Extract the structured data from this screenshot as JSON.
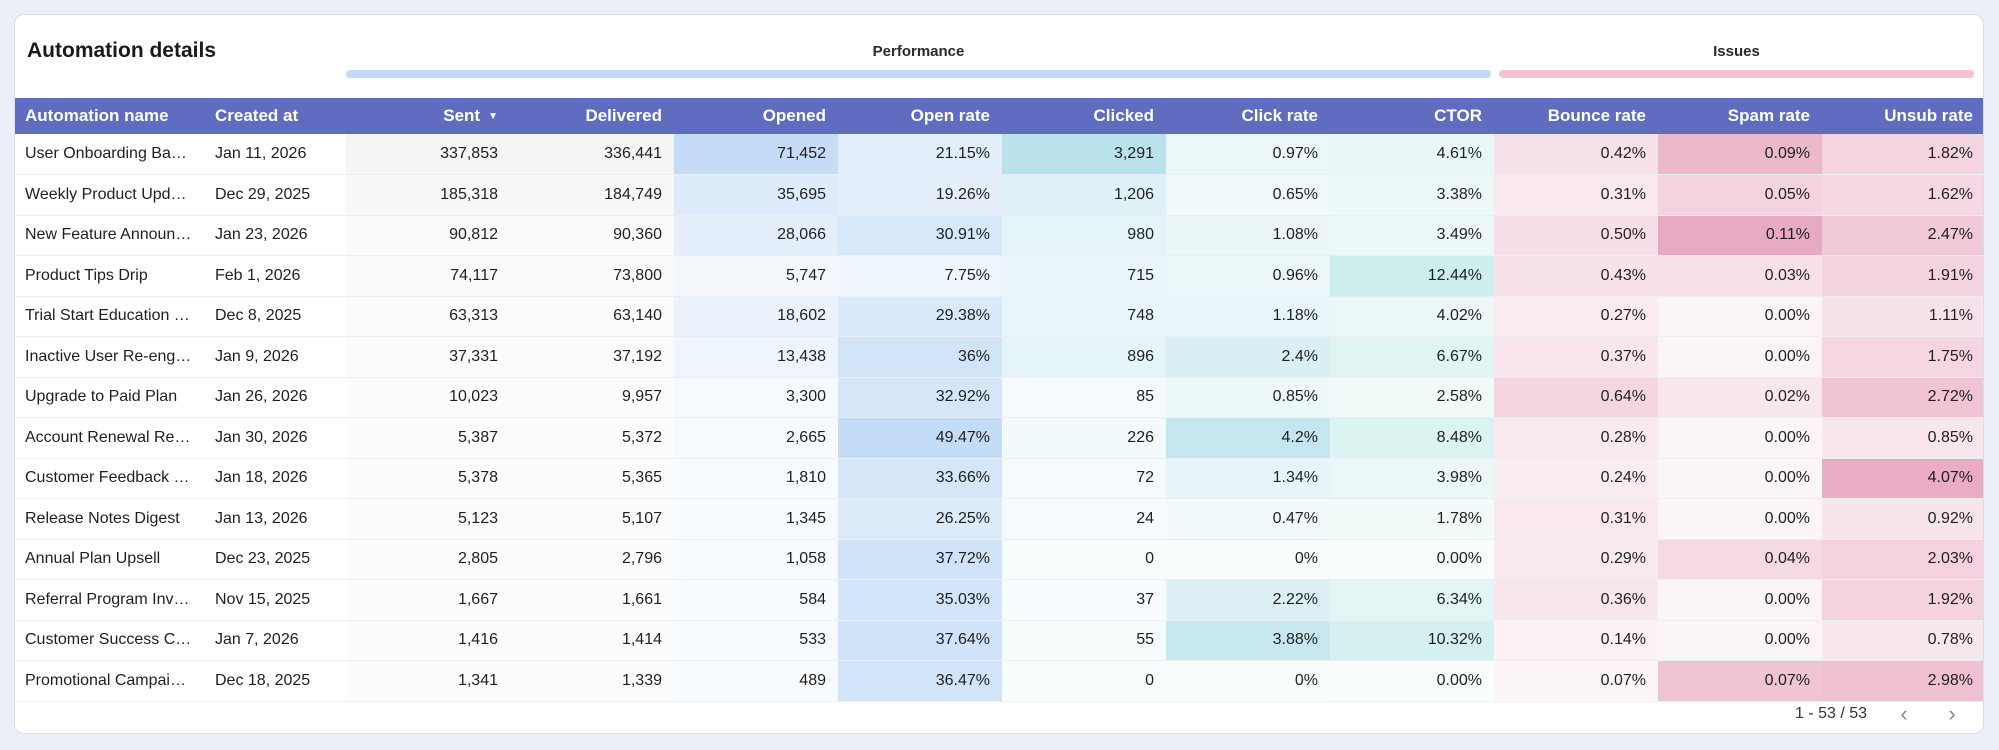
{
  "title": "Automation details",
  "groups": {
    "performance": "Performance",
    "issues": "Issues"
  },
  "colors": {
    "header_bg": "#5f6cbf",
    "performance_bar": "#c4d9f5",
    "issues_bar": "#f3c3d1"
  },
  "columns": {
    "name": "Automation name",
    "created": "Created at",
    "sent": "Sent",
    "delivered": "Delivered",
    "opened": "Opened",
    "open_rate": "Open rate",
    "clicked": "Clicked",
    "click_rate": "Click rate",
    "ctor": "CTOR",
    "bounce_rate": "Bounce rate",
    "spam_rate": "Spam rate",
    "unsub_rate": "Unsub rate"
  },
  "sort_icon": "caret-down-icon",
  "rows": [
    {
      "name": "User Onboarding Bas…",
      "created": "Jan 11, 2026",
      "sent": "337,853",
      "delivered": "336,441",
      "opened": "71,452",
      "open_rate": "21.15%",
      "clicked": "3,291",
      "click_rate": "0.97%",
      "ctor": "4.61%",
      "bounce_rate": "0.42%",
      "spam_rate": "0.09%",
      "unsub_rate": "1.82%"
    },
    {
      "name": "Weekly Product Upd…",
      "created": "Dec 29, 2025",
      "sent": "185,318",
      "delivered": "184,749",
      "opened": "35,695",
      "open_rate": "19.26%",
      "clicked": "1,206",
      "click_rate": "0.65%",
      "ctor": "3.38%",
      "bounce_rate": "0.31%",
      "spam_rate": "0.05%",
      "unsub_rate": "1.62%"
    },
    {
      "name": "New Feature Announ…",
      "created": "Jan 23, 2026",
      "sent": "90,812",
      "delivered": "90,360",
      "opened": "28,066",
      "open_rate": "30.91%",
      "clicked": "980",
      "click_rate": "1.08%",
      "ctor": "3.49%",
      "bounce_rate": "0.50%",
      "spam_rate": "0.11%",
      "unsub_rate": "2.47%"
    },
    {
      "name": "Product Tips Drip",
      "created": "Feb 1, 2026",
      "sent": "74,117",
      "delivered": "73,800",
      "opened": "5,747",
      "open_rate": "7.75%",
      "clicked": "715",
      "click_rate": "0.96%",
      "ctor": "12.44%",
      "bounce_rate": "0.43%",
      "spam_rate": "0.03%",
      "unsub_rate": "1.91%"
    },
    {
      "name": "Trial Start Education …",
      "created": "Dec 8, 2025",
      "sent": "63,313",
      "delivered": "63,140",
      "opened": "18,602",
      "open_rate": "29.38%",
      "clicked": "748",
      "click_rate": "1.18%",
      "ctor": "4.02%",
      "bounce_rate": "0.27%",
      "spam_rate": "0.00%",
      "unsub_rate": "1.11%"
    },
    {
      "name": "Inactive User Re-eng…",
      "created": "Jan 9, 2026",
      "sent": "37,331",
      "delivered": "37,192",
      "opened": "13,438",
      "open_rate": "36%",
      "clicked": "896",
      "click_rate": "2.4%",
      "ctor": "6.67%",
      "bounce_rate": "0.37%",
      "spam_rate": "0.00%",
      "unsub_rate": "1.75%"
    },
    {
      "name": "Upgrade to Paid Plan",
      "created": "Jan 26, 2026",
      "sent": "10,023",
      "delivered": "9,957",
      "opened": "3,300",
      "open_rate": "32.92%",
      "clicked": "85",
      "click_rate": "0.85%",
      "ctor": "2.58%",
      "bounce_rate": "0.64%",
      "spam_rate": "0.02%",
      "unsub_rate": "2.72%"
    },
    {
      "name": "Account Renewal Re…",
      "created": "Jan 30, 2026",
      "sent": "5,387",
      "delivered": "5,372",
      "opened": "2,665",
      "open_rate": "49.47%",
      "clicked": "226",
      "click_rate": "4.2%",
      "ctor": "8.48%",
      "bounce_rate": "0.28%",
      "spam_rate": "0.00%",
      "unsub_rate": "0.85%"
    },
    {
      "name": "Customer Feedback …",
      "created": "Jan 18, 2026",
      "sent": "5,378",
      "delivered": "5,365",
      "opened": "1,810",
      "open_rate": "33.66%",
      "clicked": "72",
      "click_rate": "1.34%",
      "ctor": "3.98%",
      "bounce_rate": "0.24%",
      "spam_rate": "0.00%",
      "unsub_rate": "4.07%"
    },
    {
      "name": "Release Notes Digest",
      "created": "Jan 13, 2026",
      "sent": "5,123",
      "delivered": "5,107",
      "opened": "1,345",
      "open_rate": "26.25%",
      "clicked": "24",
      "click_rate": "0.47%",
      "ctor": "1.78%",
      "bounce_rate": "0.31%",
      "spam_rate": "0.00%",
      "unsub_rate": "0.92%"
    },
    {
      "name": "Annual Plan Upsell",
      "created": "Dec 23, 2025",
      "sent": "2,805",
      "delivered": "2,796",
      "opened": "1,058",
      "open_rate": "37.72%",
      "clicked": "0",
      "click_rate": "0%",
      "ctor": "0.00%",
      "bounce_rate": "0.29%",
      "spam_rate": "0.04%",
      "unsub_rate": "2.03%"
    },
    {
      "name": "Referral Program Invi…",
      "created": "Nov 15, 2025",
      "sent": "1,667",
      "delivered": "1,661",
      "opened": "584",
      "open_rate": "35.03%",
      "clicked": "37",
      "click_rate": "2.22%",
      "ctor": "6.34%",
      "bounce_rate": "0.36%",
      "spam_rate": "0.00%",
      "unsub_rate": "1.92%"
    },
    {
      "name": "Customer Success C…",
      "created": "Jan 7, 2026",
      "sent": "1,416",
      "delivered": "1,414",
      "opened": "533",
      "open_rate": "37.64%",
      "clicked": "55",
      "click_rate": "3.88%",
      "ctor": "10.32%",
      "bounce_rate": "0.14%",
      "spam_rate": "0.00%",
      "unsub_rate": "0.78%"
    },
    {
      "name": "Promotional Campai…",
      "created": "Dec 18, 2025",
      "sent": "1,341",
      "delivered": "1,339",
      "opened": "489",
      "open_rate": "36.47%",
      "clicked": "0",
      "click_rate": "0%",
      "ctor": "0.00%",
      "bounce_rate": "0.07%",
      "spam_rate": "0.07%",
      "unsub_rate": "2.98%"
    }
  ],
  "pagination": {
    "range": "1 - 53 / 53",
    "prev_icon": "chevron-left-icon",
    "next_icon": "chevron-right-icon"
  }
}
